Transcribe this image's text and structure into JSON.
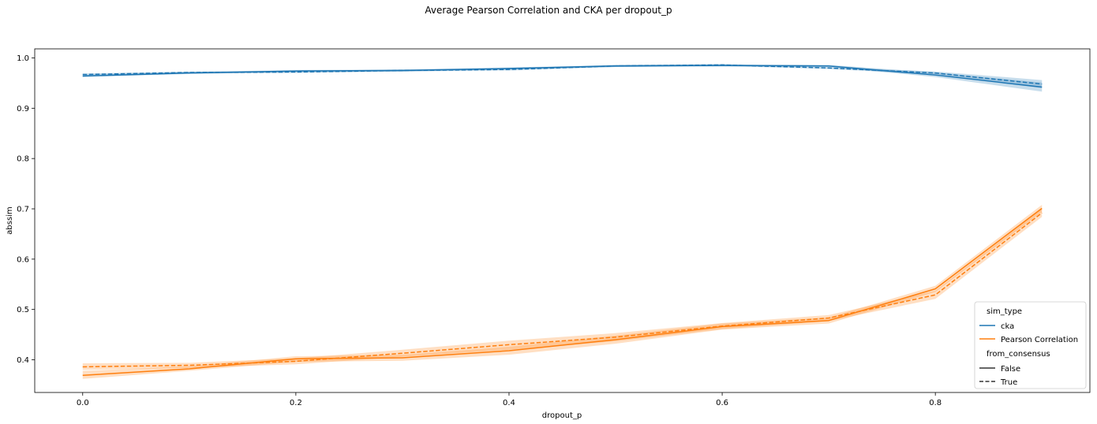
{
  "chart_data": {
    "type": "line",
    "title": "Average Pearson Correlation and CKA per dropout_p",
    "xlabel": "dropout_p",
    "ylabel": "abssim",
    "xlim": [
      -0.045,
      0.945
    ],
    "ylim": [
      0.335,
      1.018
    ],
    "xticks": [
      0.0,
      0.2,
      0.4,
      0.6,
      0.8
    ],
    "xtick_labels": [
      "0.0",
      "0.2",
      "0.4",
      "0.6",
      "0.8"
    ],
    "yticks": [
      0.4,
      0.5,
      0.6,
      0.7,
      0.8,
      0.9,
      1.0
    ],
    "ytick_labels": [
      "0.4",
      "0.5",
      "0.6",
      "0.7",
      "0.8",
      "0.9",
      "1.0"
    ],
    "grid": false,
    "legend": {
      "placement": "lower-right",
      "hue_title": "sim_type",
      "style_title": "from_consensus",
      "hue_entries": [
        {
          "label": "cka",
          "color": "#1f77b4"
        },
        {
          "label": "Pearson Correlation",
          "color": "#ff7f0e"
        }
      ],
      "style_entries": [
        {
          "label": "False",
          "dash": "solid"
        },
        {
          "label": "True",
          "dash": "dashed"
        }
      ]
    },
    "x": [
      0.0,
      0.1,
      0.2,
      0.3,
      0.4,
      0.5,
      0.6,
      0.7,
      0.8,
      0.9
    ],
    "series": [
      {
        "sim_type": "cka",
        "from_consensus": "False",
        "color": "#1f77b4",
        "dash": "solid",
        "values": [
          0.964,
          0.97,
          0.974,
          0.975,
          0.979,
          0.984,
          0.985,
          0.984,
          0.966,
          0.942
        ],
        "ci_lower": [
          0.962,
          0.968,
          0.972,
          0.973,
          0.977,
          0.982,
          0.983,
          0.982,
          0.962,
          0.933
        ],
        "ci_upper": [
          0.966,
          0.972,
          0.976,
          0.977,
          0.981,
          0.986,
          0.987,
          0.986,
          0.971,
          0.951
        ]
      },
      {
        "sim_type": "cka",
        "from_consensus": "True",
        "color": "#1f77b4",
        "dash": "dashed",
        "values": [
          0.967,
          0.971,
          0.972,
          0.975,
          0.977,
          0.984,
          0.986,
          0.98,
          0.97,
          0.948
        ],
        "ci_lower": [
          0.965,
          0.969,
          0.97,
          0.973,
          0.975,
          0.982,
          0.984,
          0.978,
          0.967,
          0.94
        ],
        "ci_upper": [
          0.969,
          0.973,
          0.974,
          0.977,
          0.979,
          0.986,
          0.988,
          0.982,
          0.973,
          0.956
        ]
      },
      {
        "sim_type": "Pearson Correlation",
        "from_consensus": "False",
        "color": "#ff7f0e",
        "dash": "solid",
        "values": [
          0.369,
          0.382,
          0.402,
          0.404,
          0.418,
          0.44,
          0.466,
          0.478,
          0.541,
          0.701
        ],
        "ci_lower": [
          0.362,
          0.378,
          0.396,
          0.398,
          0.41,
          0.432,
          0.46,
          0.472,
          0.535,
          0.694
        ],
        "ci_upper": [
          0.378,
          0.387,
          0.407,
          0.41,
          0.426,
          0.448,
          0.472,
          0.484,
          0.547,
          0.708
        ]
      },
      {
        "sim_type": "Pearson Correlation",
        "from_consensus": "True",
        "color": "#ff7f0e",
        "dash": "dashed",
        "values": [
          0.386,
          0.389,
          0.397,
          0.413,
          0.43,
          0.445,
          0.467,
          0.483,
          0.529,
          0.692
        ],
        "ci_lower": [
          0.38,
          0.384,
          0.391,
          0.406,
          0.42,
          0.437,
          0.461,
          0.477,
          0.521,
          0.684
        ],
        "ci_upper": [
          0.393,
          0.394,
          0.403,
          0.42,
          0.438,
          0.453,
          0.473,
          0.489,
          0.537,
          0.7
        ]
      }
    ]
  }
}
